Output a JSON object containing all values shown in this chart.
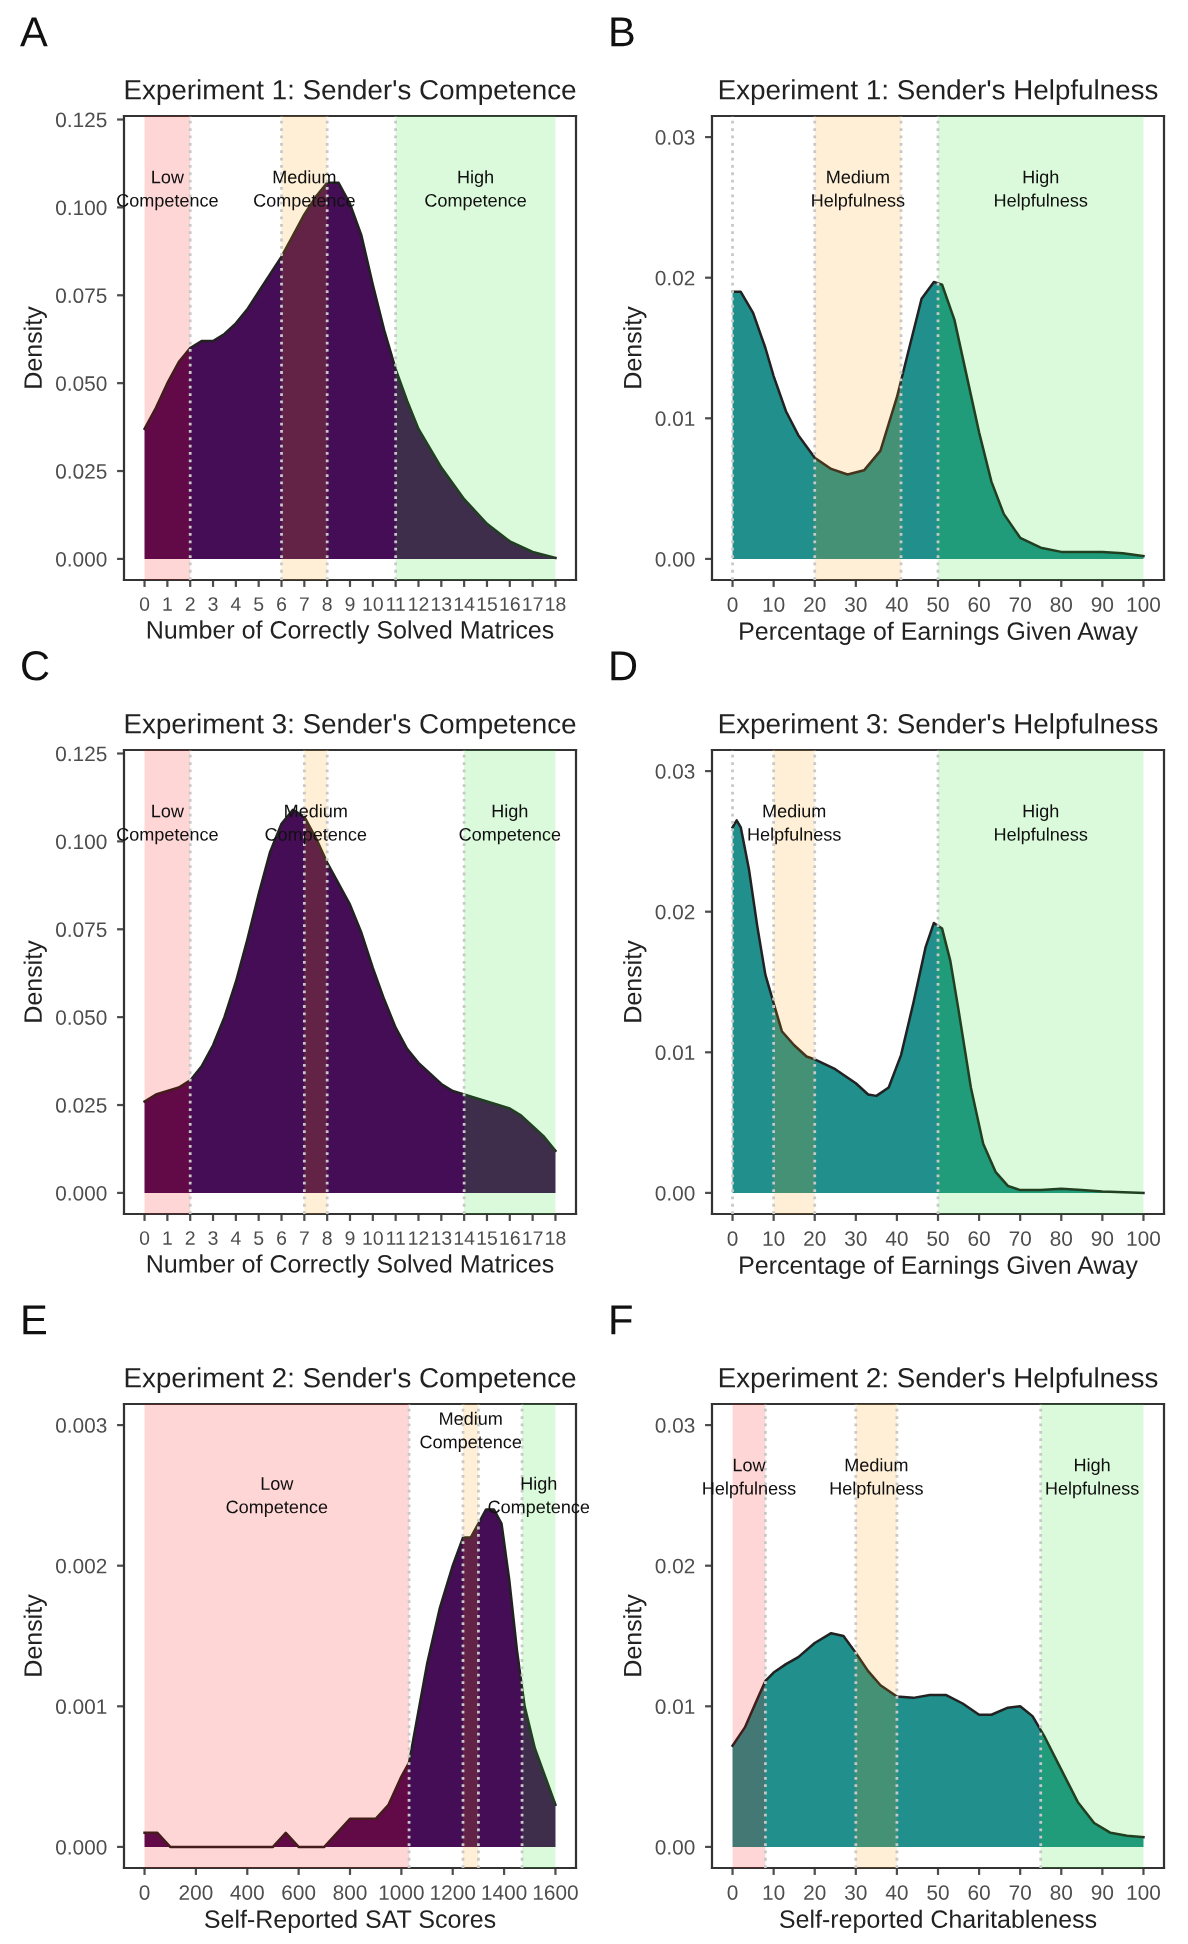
{
  "chart_data": [
    {
      "type": "area",
      "title": "Experiment 1: Sender's Competence",
      "xlabel": "Number of Correctly Solved Matrices",
      "ylabel": "Density",
      "series": [
        {
          "color": "#440d55",
          "x": [
            0,
            0.5,
            1,
            1.5,
            2,
            2.5,
            3,
            3.5,
            4,
            4.5,
            5,
            5.5,
            6,
            6.5,
            7,
            7.5,
            8,
            8.5,
            9,
            9.5,
            10,
            10.5,
            11,
            11.5,
            12,
            13,
            14,
            15,
            16,
            17,
            18
          ],
          "values": [
            0.037,
            0.043,
            0.05,
            0.056,
            0.06,
            0.062,
            0.062,
            0.064,
            0.067,
            0.071,
            0.076,
            0.081,
            0.086,
            0.092,
            0.098,
            0.103,
            0.107,
            0.107,
            0.101,
            0.092,
            0.078,
            0.065,
            0.054,
            0.045,
            0.037,
            0.026,
            0.017,
            0.01,
            0.005,
            0.002,
            0.0003
          ]
        }
      ],
      "xlim": [
        -0.9,
        18.9
      ],
      "ylim": [
        -0.006,
        0.126
      ],
      "xticks": [
        0,
        1,
        2,
        3,
        4,
        5,
        6,
        7,
        8,
        9,
        10,
        11,
        12,
        13,
        14,
        15,
        16,
        17,
        18
      ],
      "yticks": [
        {
          "value": 0,
          "label": "0.000"
        },
        {
          "value": 0.025,
          "label": "0.025"
        },
        {
          "value": 0.05,
          "label": "0.050"
        },
        {
          "value": 0.075,
          "label": "0.075"
        },
        {
          "value": 0.1,
          "label": "0.100"
        },
        {
          "value": 0.125,
          "label": "0.125"
        }
      ],
      "bands": [
        {
          "axis": "x",
          "from": 0,
          "to": 2,
          "color": "#ff0000",
          "label": "Low\nCompetence"
        },
        {
          "axis": "x",
          "from": 6,
          "to": 8,
          "color": "#ff9900",
          "label": "Medium\nCompetence"
        },
        {
          "axis": "x",
          "from": 11,
          "to": 18,
          "color": "#22dd22",
          "label": "High\nCompetence"
        }
      ],
      "ref_lines": [
        {
          "axis": "x",
          "value": 2,
          "line_style": "dotted"
        },
        {
          "axis": "x",
          "value": 6,
          "line_style": "dotted"
        },
        {
          "axis": "x",
          "value": 8,
          "line_style": "dotted"
        },
        {
          "axis": "x",
          "value": 11,
          "line_style": "dotted"
        }
      ],
      "annotations": [
        "A"
      ],
      "grid": false
    },
    {
      "type": "area",
      "title": "Experiment 1: Sender's Helpfulness",
      "xlabel": "Percentage of Earnings Given Away",
      "ylabel": "Density",
      "series": [
        {
          "color": "#21908c",
          "x": [
            0,
            2,
            5,
            8,
            10,
            13,
            16,
            20,
            24,
            28,
            32,
            36,
            40,
            43,
            46,
            49,
            51,
            54,
            57,
            60,
            63,
            66,
            70,
            75,
            80,
            85,
            90,
            95,
            100
          ],
          "values": [
            0.019,
            0.019,
            0.0175,
            0.015,
            0.013,
            0.0105,
            0.0088,
            0.0072,
            0.0064,
            0.006,
            0.0063,
            0.0077,
            0.0115,
            0.015,
            0.0185,
            0.0197,
            0.0195,
            0.017,
            0.013,
            0.009,
            0.0055,
            0.0032,
            0.0015,
            0.0008,
            0.0005,
            0.0005,
            0.0005,
            0.0004,
            0.0002
          ]
        }
      ],
      "xlim": [
        -5,
        105
      ],
      "ylim": [
        -0.0015,
        0.0315
      ],
      "xticks": [
        0,
        10,
        20,
        30,
        40,
        50,
        60,
        70,
        80,
        90,
        100
      ],
      "yticks": [
        {
          "value": 0,
          "label": "0.00"
        },
        {
          "value": 0.01,
          "label": "0.01"
        },
        {
          "value": 0.02,
          "label": "0.02"
        },
        {
          "value": 0.03,
          "label": "0.03"
        }
      ],
      "bands": [
        {
          "axis": "x",
          "from": 20,
          "to": 41,
          "color": "#ff9900",
          "label": "Medium\nHelpfulness"
        },
        {
          "axis": "x",
          "from": 50,
          "to": 100,
          "color": "#22dd22",
          "label": "High\nHelpfulness"
        }
      ],
      "ref_lines": [
        {
          "axis": "x",
          "value": 0,
          "line_style": "dotted"
        },
        {
          "axis": "x",
          "value": 20,
          "line_style": "dotted"
        },
        {
          "axis": "x",
          "value": 41,
          "line_style": "dotted"
        },
        {
          "axis": "x",
          "value": 50,
          "line_style": "dotted"
        }
      ],
      "annotations": [
        "B"
      ],
      "grid": false
    },
    {
      "type": "area",
      "title": "Experiment 3: Sender's Competence",
      "xlabel": "Number of Correctly Solved Matrices",
      "ylabel": "Density",
      "series": [
        {
          "color": "#440d55",
          "x": [
            0,
            0.5,
            1,
            1.5,
            2,
            2.5,
            3,
            3.5,
            4,
            4.5,
            5,
            5.5,
            6,
            6.5,
            7,
            7.5,
            8,
            8.5,
            9,
            9.5,
            10,
            10.5,
            11,
            11.5,
            12,
            12.5,
            13,
            13.5,
            14,
            14.5,
            15,
            15.5,
            16,
            16.5,
            17,
            17.5,
            18
          ],
          "values": [
            0.026,
            0.028,
            0.029,
            0.03,
            0.032,
            0.036,
            0.042,
            0.05,
            0.06,
            0.072,
            0.085,
            0.097,
            0.105,
            0.109,
            0.107,
            0.101,
            0.094,
            0.088,
            0.082,
            0.074,
            0.064,
            0.055,
            0.047,
            0.041,
            0.037,
            0.034,
            0.031,
            0.029,
            0.028,
            0.027,
            0.026,
            0.025,
            0.024,
            0.022,
            0.019,
            0.016,
            0.012
          ]
        }
      ],
      "xlim": [
        -0.9,
        18.9
      ],
      "ylim": [
        -0.006,
        0.126
      ],
      "xticks": [
        0,
        1,
        2,
        3,
        4,
        5,
        6,
        7,
        8,
        9,
        10,
        11,
        12,
        13,
        14,
        15,
        16,
        17,
        18
      ],
      "yticks": [
        {
          "value": 0,
          "label": "0.000"
        },
        {
          "value": 0.025,
          "label": "0.025"
        },
        {
          "value": 0.05,
          "label": "0.050"
        },
        {
          "value": 0.075,
          "label": "0.075"
        },
        {
          "value": 0.1,
          "label": "0.100"
        },
        {
          "value": 0.125,
          "label": "0.125"
        }
      ],
      "bands": [
        {
          "axis": "x",
          "from": 0,
          "to": 2,
          "color": "#ff0000",
          "label": "Low\nCompetence"
        },
        {
          "axis": "x",
          "from": 7,
          "to": 8,
          "color": "#ff9900",
          "label": "Medium\nCompetence"
        },
        {
          "axis": "x",
          "from": 14,
          "to": 18,
          "color": "#22dd22",
          "label": "High\nCompetence"
        }
      ],
      "ref_lines": [
        {
          "axis": "x",
          "value": 2,
          "line_style": "dotted"
        },
        {
          "axis": "x",
          "value": 7,
          "line_style": "dotted"
        },
        {
          "axis": "x",
          "value": 8,
          "line_style": "dotted"
        },
        {
          "axis": "x",
          "value": 14,
          "line_style": "dotted"
        }
      ],
      "annotations": [
        "C"
      ],
      "grid": false
    },
    {
      "type": "area",
      "title": "Experiment 3: Sender's Helpfulness",
      "xlabel": "Percentage of Earnings Given Away",
      "ylabel": "Density",
      "series": [
        {
          "color": "#21908c",
          "x": [
            0,
            1,
            2,
            4,
            6,
            8,
            10,
            12,
            15,
            18,
            20,
            25,
            30,
            33,
            35,
            38,
            41,
            44,
            47,
            49,
            51,
            53,
            55,
            58,
            61,
            64,
            67,
            70,
            75,
            80,
            85,
            90,
            100
          ],
          "values": [
            0.026,
            0.0265,
            0.026,
            0.023,
            0.019,
            0.0155,
            0.0135,
            0.0115,
            0.0105,
            0.0097,
            0.0095,
            0.0088,
            0.0078,
            0.007,
            0.0069,
            0.0075,
            0.0098,
            0.0135,
            0.0175,
            0.0192,
            0.0188,
            0.0165,
            0.013,
            0.0075,
            0.0035,
            0.0015,
            0.0005,
            0.0002,
            0.0002,
            0.0003,
            0.0002,
            0.0001,
            0.0
          ]
        }
      ],
      "xlim": [
        -5,
        105
      ],
      "ylim": [
        -0.0015,
        0.0315
      ],
      "xticks": [
        0,
        10,
        20,
        30,
        40,
        50,
        60,
        70,
        80,
        90,
        100
      ],
      "yticks": [
        {
          "value": 0,
          "label": "0.00"
        },
        {
          "value": 0.01,
          "label": "0.01"
        },
        {
          "value": 0.02,
          "label": "0.02"
        },
        {
          "value": 0.03,
          "label": "0.03"
        }
      ],
      "bands": [
        {
          "axis": "x",
          "from": 10,
          "to": 20,
          "color": "#ff9900",
          "label": "Medium\nHelpfulness"
        },
        {
          "axis": "x",
          "from": 50,
          "to": 100,
          "color": "#22dd22",
          "label": "High\nHelpfulness"
        }
      ],
      "ref_lines": [
        {
          "axis": "x",
          "value": 0,
          "line_style": "dotted"
        },
        {
          "axis": "x",
          "value": 10,
          "line_style": "dotted"
        },
        {
          "axis": "x",
          "value": 20,
          "line_style": "dotted"
        },
        {
          "axis": "x",
          "value": 50,
          "line_style": "dotted"
        }
      ],
      "annotations": [
        "D"
      ],
      "grid": false
    },
    {
      "type": "area",
      "title": "Experiment 2: Sender's Competence",
      "xlabel": "Self-Reported SAT Scores",
      "ylabel": "Density",
      "series": [
        {
          "color": "#440d55",
          "x": [
            0,
            50,
            100,
            200,
            400,
            500,
            550,
            600,
            650,
            700,
            750,
            800,
            850,
            900,
            950,
            1000,
            1030,
            1060,
            1100,
            1150,
            1200,
            1240,
            1270,
            1300,
            1330,
            1360,
            1390,
            1420,
            1450,
            1480,
            1520,
            1560,
            1600
          ],
          "values": [
            0.0001,
            0.0001,
            0.0,
            0.0,
            0.0,
            0.0,
            0.0001,
            0.0,
            0.0,
            0.0,
            0.0001,
            0.0002,
            0.0002,
            0.0002,
            0.0003,
            0.0005,
            0.0006,
            0.0009,
            0.0013,
            0.0017,
            0.002,
            0.0022,
            0.0022,
            0.0023,
            0.0024,
            0.0024,
            0.0023,
            0.0019,
            0.0014,
            0.001,
            0.0007,
            0.0005,
            0.0003
          ]
        }
      ],
      "xlim": [
        -80,
        1680
      ],
      "ylim": [
        -0.00015,
        0.00315
      ],
      "xticks": [
        0,
        200,
        400,
        600,
        800,
        1000,
        1200,
        1400,
        1600
      ],
      "yticks": [
        {
          "value": 0,
          "label": "0.000"
        },
        {
          "value": 0.001,
          "label": "0.001"
        },
        {
          "value": 0.002,
          "label": "0.002"
        },
        {
          "value": 0.003,
          "label": "0.003"
        }
      ],
      "bands": [
        {
          "axis": "x",
          "from": 0,
          "to": 1030,
          "color": "#ff0000",
          "label": "Low\nCompetence"
        },
        {
          "axis": "x",
          "from": 1240,
          "to": 1300,
          "color": "#ff9900",
          "label": "Medium\nCompetence"
        },
        {
          "axis": "x",
          "from": 1470,
          "to": 1600,
          "color": "#22dd22",
          "label": "High\nCompetence"
        }
      ],
      "ref_lines": [
        {
          "axis": "x",
          "value": 1030,
          "line_style": "dotted"
        },
        {
          "axis": "x",
          "value": 1240,
          "line_style": "dotted"
        },
        {
          "axis": "x",
          "value": 1300,
          "line_style": "dotted"
        },
        {
          "axis": "x",
          "value": 1470,
          "line_style": "dotted"
        }
      ],
      "annotations": [
        "E"
      ],
      "grid": false
    },
    {
      "type": "area",
      "title": "Experiment 2: Sender's Helpfulness",
      "xlabel": "Self-reported Charitableness",
      "ylabel": "Density",
      "series": [
        {
          "color": "#21908c",
          "x": [
            0,
            3,
            6,
            8,
            10,
            13,
            16,
            20,
            24,
            27,
            30,
            33,
            36,
            40,
            44,
            48,
            52,
            56,
            60,
            63,
            67,
            70,
            73,
            76,
            80,
            84,
            88,
            92,
            96,
            100
          ],
          "values": [
            0.0072,
            0.0085,
            0.0105,
            0.0118,
            0.0124,
            0.013,
            0.0135,
            0.0145,
            0.0152,
            0.015,
            0.0138,
            0.0125,
            0.0115,
            0.0107,
            0.0106,
            0.0108,
            0.0108,
            0.0102,
            0.0094,
            0.0094,
            0.0099,
            0.01,
            0.0093,
            0.0078,
            0.0055,
            0.0032,
            0.0017,
            0.001,
            0.0008,
            0.0007
          ]
        }
      ],
      "xlim": [
        -5,
        105
      ],
      "ylim": [
        -0.0015,
        0.0315
      ],
      "xticks": [
        0,
        10,
        20,
        30,
        40,
        50,
        60,
        70,
        80,
        90,
        100
      ],
      "yticks": [
        {
          "value": 0,
          "label": "0.00"
        },
        {
          "value": 0.01,
          "label": "0.01"
        },
        {
          "value": 0.02,
          "label": "0.02"
        },
        {
          "value": 0.03,
          "label": "0.03"
        }
      ],
      "bands": [
        {
          "axis": "x",
          "from": 0,
          "to": 8,
          "color": "#ff0000",
          "label": "Low\nHelpfulness"
        },
        {
          "axis": "x",
          "from": 30,
          "to": 40,
          "color": "#ff9900",
          "label": "Medium\nHelpfulness"
        },
        {
          "axis": "x",
          "from": 75,
          "to": 100,
          "color": "#22dd22",
          "label": "High\nHelpfulness"
        }
      ],
      "ref_lines": [
        {
          "axis": "x",
          "value": 8,
          "line_style": "dotted"
        },
        {
          "axis": "x",
          "value": 30,
          "line_style": "dotted"
        },
        {
          "axis": "x",
          "value": 40,
          "line_style": "dotted"
        },
        {
          "axis": "x",
          "value": 75,
          "line_style": "dotted"
        }
      ],
      "annotations": [
        "F"
      ],
      "grid": false
    }
  ]
}
